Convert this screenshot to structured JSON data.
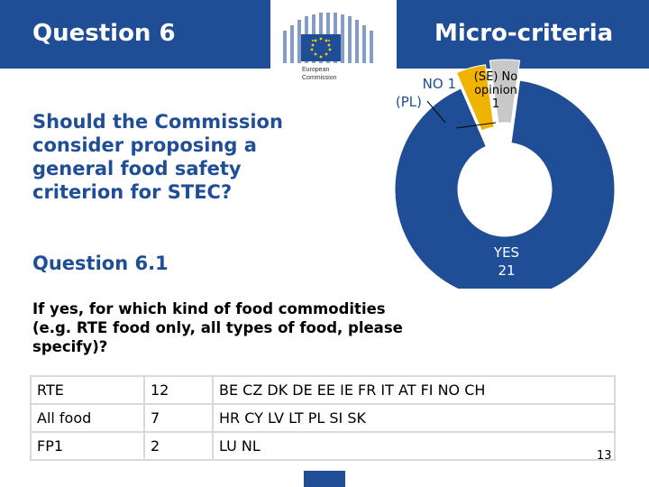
{
  "header": {
    "question_label": "Question 6",
    "section_title": "Micro-criteria"
  },
  "logo": {
    "line1": "European",
    "line2": "Commission"
  },
  "question": {
    "text": "Should the Commission consider proposing a general food safety criterion for STEC?"
  },
  "sub_question": {
    "label": "Question 6.1",
    "text": "If yes, for which kind of food commodities (e.g. RTE food only, all types of food, please specify)?"
  },
  "chart_data": {
    "type": "pie",
    "slices": [
      {
        "label": "YES",
        "value": 21,
        "color": "#1f4e97"
      },
      {
        "label": "NO",
        "value": 1,
        "color": "#f0b400",
        "note": "(PL)"
      },
      {
        "label": "No opinion",
        "value": 1,
        "color": "#c8c8c8",
        "note": "(SE)"
      }
    ],
    "labels": {
      "yes_name": "YES",
      "yes_value": "21",
      "no_text": "NO 1",
      "no_country": "(PL)",
      "noop_line1": "(SE) No",
      "noop_line2": "opinion",
      "noop_value": "1"
    }
  },
  "responses": {
    "rows": [
      {
        "food": "RTE",
        "count": "12",
        "countries": "BE CZ DK DE EE IE FR IT AT FI NO CH"
      },
      {
        "food": "All food",
        "count": "7",
        "countries": "HR CY LV LT PL SI SK"
      },
      {
        "food": "FP1",
        "count": "2",
        "countries": "LU NL"
      }
    ]
  },
  "footer": {
    "page_number": "13"
  }
}
